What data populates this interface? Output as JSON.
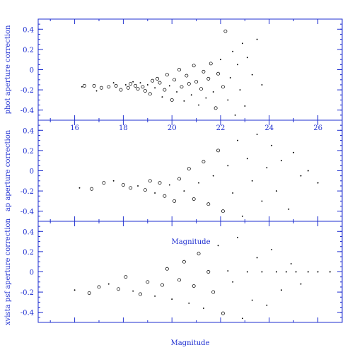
{
  "chart_data": [
    {
      "type": "scatter",
      "panel": "top",
      "ylabel": "phot aperture correction",
      "xlim": [
        14.5,
        27.0
      ],
      "ylim": [
        -0.5,
        0.5
      ],
      "xticks": [
        "16",
        "18",
        "20",
        "22",
        "24",
        "26"
      ],
      "yticks": [
        "0.4",
        "0.2",
        "0",
        "-0.2",
        "-0.4"
      ],
      "points": [
        [
          16.3,
          -0.17
        ],
        [
          16.4,
          -0.16
        ],
        [
          16.8,
          -0.16
        ],
        [
          16.9,
          -0.21
        ],
        [
          17.1,
          -0.18
        ],
        [
          17.4,
          -0.17
        ],
        [
          17.6,
          -0.13
        ],
        [
          17.7,
          -0.16
        ],
        [
          17.9,
          -0.2
        ],
        [
          18.1,
          -0.15
        ],
        [
          18.2,
          -0.18
        ],
        [
          18.3,
          -0.14
        ],
        [
          18.4,
          -0.12
        ],
        [
          18.5,
          -0.16
        ],
        [
          18.6,
          -0.19
        ],
        [
          18.7,
          -0.13
        ],
        [
          18.8,
          -0.17
        ],
        [
          18.9,
          -0.21
        ],
        [
          19.0,
          -0.15
        ],
        [
          19.1,
          -0.24
        ],
        [
          19.2,
          -0.11
        ],
        [
          19.3,
          -0.18
        ],
        [
          19.4,
          -0.09
        ],
        [
          19.5,
          -0.13
        ],
        [
          19.6,
          -0.27
        ],
        [
          19.7,
          -0.2
        ],
        [
          19.8,
          -0.05
        ],
        [
          19.9,
          -0.16
        ],
        [
          20.0,
          -0.3
        ],
        [
          20.1,
          -0.1
        ],
        [
          20.2,
          -0.22
        ],
        [
          20.3,
          0.0
        ],
        [
          20.4,
          -0.17
        ],
        [
          20.5,
          -0.31
        ],
        [
          20.6,
          -0.06
        ],
        [
          20.7,
          -0.14
        ],
        [
          20.8,
          -0.25
        ],
        [
          20.9,
          0.04
        ],
        [
          21.0,
          -0.12
        ],
        [
          21.1,
          -0.35
        ],
        [
          21.2,
          -0.19
        ],
        [
          21.3,
          -0.02
        ],
        [
          21.4,
          -0.28
        ],
        [
          21.5,
          -0.09
        ],
        [
          21.6,
          0.06
        ],
        [
          21.7,
          -0.22
        ],
        [
          21.8,
          -0.38
        ],
        [
          21.9,
          -0.04
        ],
        [
          22.0,
          0.1
        ],
        [
          22.1,
          -0.17
        ],
        [
          22.2,
          0.38
        ],
        [
          22.3,
          -0.3
        ],
        [
          22.4,
          -0.08
        ],
        [
          22.5,
          0.18
        ],
        [
          22.6,
          -0.45
        ],
        [
          22.7,
          0.05
        ],
        [
          22.8,
          -0.2
        ],
        [
          22.9,
          0.26
        ],
        [
          23.0,
          -0.36
        ],
        [
          23.1,
          0.12
        ],
        [
          23.3,
          -0.05
        ],
        [
          23.5,
          0.3
        ],
        [
          23.7,
          -0.15
        ]
      ]
    },
    {
      "type": "scatter",
      "panel": "middle",
      "ylabel": "ap aperture correction",
      "xlim": [
        14.5,
        27.0
      ],
      "ylim": [
        -0.5,
        0.5
      ],
      "yticks": [
        "0.4",
        "0.2",
        "0",
        "-0.2",
        "-0.4"
      ],
      "points": [
        [
          16.2,
          -0.17
        ],
        [
          16.7,
          -0.18
        ],
        [
          17.2,
          -0.12
        ],
        [
          17.6,
          -0.1
        ],
        [
          18.0,
          -0.14
        ],
        [
          18.3,
          -0.17
        ],
        [
          18.6,
          -0.15
        ],
        [
          18.9,
          -0.19
        ],
        [
          19.1,
          -0.1
        ],
        [
          19.3,
          -0.22
        ],
        [
          19.5,
          -0.12
        ],
        [
          19.7,
          -0.25
        ],
        [
          19.9,
          -0.14
        ],
        [
          20.1,
          -0.3
        ],
        [
          20.3,
          -0.08
        ],
        [
          20.5,
          -0.2
        ],
        [
          20.7,
          0.02
        ],
        [
          20.9,
          -0.28
        ],
        [
          21.1,
          -0.12
        ],
        [
          21.3,
          0.09
        ],
        [
          21.5,
          -0.33
        ],
        [
          21.7,
          -0.05
        ],
        [
          21.9,
          0.2
        ],
        [
          22.1,
          -0.4
        ],
        [
          22.3,
          0.05
        ],
        [
          22.5,
          -0.22
        ],
        [
          22.7,
          0.3
        ],
        [
          22.9,
          -0.45
        ],
        [
          23.1,
          0.12
        ],
        [
          23.3,
          -0.1
        ],
        [
          23.5,
          0.36
        ],
        [
          23.7,
          -0.3
        ],
        [
          23.9,
          0.03
        ],
        [
          24.1,
          0.25
        ],
        [
          24.3,
          -0.2
        ],
        [
          24.5,
          0.1
        ],
        [
          24.8,
          -0.38
        ],
        [
          25.0,
          0.18
        ],
        [
          25.3,
          -0.05
        ],
        [
          25.6,
          0.0
        ],
        [
          26.0,
          -0.12
        ]
      ]
    },
    {
      "type": "scatter",
      "panel": "bottom",
      "ylabel": "xvista psf aperture correction",
      "xlabel": "Magnitude",
      "xlim": [
        14.5,
        27.0
      ],
      "ylim": [
        -0.5,
        0.5
      ],
      "yticks": [
        "0.4",
        "0.2",
        "0",
        "-0.2",
        "-0.4"
      ],
      "points": [
        [
          16.0,
          -0.18
        ],
        [
          16.6,
          -0.21
        ],
        [
          17.0,
          -0.15
        ],
        [
          17.4,
          -0.12
        ],
        [
          17.8,
          -0.17
        ],
        [
          18.1,
          -0.05
        ],
        [
          18.4,
          -0.19
        ],
        [
          18.7,
          -0.22
        ],
        [
          19.0,
          -0.1
        ],
        [
          19.3,
          -0.24
        ],
        [
          19.6,
          -0.13
        ],
        [
          19.8,
          0.03
        ],
        [
          20.0,
          -0.27
        ],
        [
          20.3,
          -0.08
        ],
        [
          20.5,
          0.1
        ],
        [
          20.7,
          -0.31
        ],
        [
          20.9,
          -0.14
        ],
        [
          21.1,
          0.18
        ],
        [
          21.3,
          -0.36
        ],
        [
          21.5,
          0.0
        ],
        [
          21.7,
          -0.2
        ],
        [
          21.9,
          0.26
        ],
        [
          22.1,
          -0.41
        ],
        [
          22.3,
          0.01
        ],
        [
          22.5,
          -0.1
        ],
        [
          22.7,
          0.34
        ],
        [
          22.9,
          -0.46
        ],
        [
          23.1,
          0.0
        ],
        [
          23.3,
          -0.28
        ],
        [
          23.5,
          0.14
        ],
        [
          23.7,
          0.0
        ],
        [
          23.9,
          -0.33
        ],
        [
          24.1,
          0.22
        ],
        [
          24.3,
          0.0
        ],
        [
          24.5,
          -0.18
        ],
        [
          24.7,
          0.0
        ],
        [
          24.9,
          0.08
        ],
        [
          25.1,
          0.0
        ],
        [
          25.3,
          -0.12
        ],
        [
          25.6,
          0.0
        ],
        [
          26.0,
          0.0
        ],
        [
          26.5,
          0.0
        ]
      ]
    }
  ],
  "overlay_label": "Magnitude"
}
